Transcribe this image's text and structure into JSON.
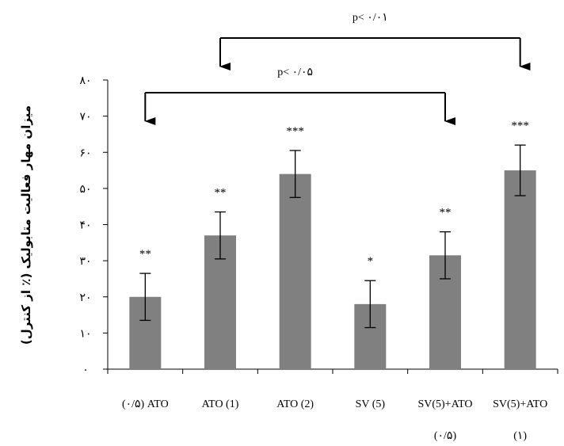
{
  "chart_data": {
    "type": "bar",
    "categories": [
      [
        "(۰/۵) ATO"
      ],
      [
        "ATO (1)"
      ],
      [
        "ATO (2)"
      ],
      [
        "SV (5)"
      ],
      [
        "SV(5)+ATO",
        "(۰/۵)"
      ],
      [
        "SV(5)+ATO",
        "(۱)"
      ]
    ],
    "values": [
      20,
      37,
      54,
      18,
      31.5,
      55
    ],
    "errors": [
      6.5,
      6.5,
      6.5,
      6.5,
      6.5,
      7
    ],
    "significance": [
      "**",
      "**",
      "***",
      "*",
      "**",
      "***"
    ],
    "ylabel": "میزان مهار فعالیت متابولیک (٪ از کنترل)",
    "ylim": [
      0,
      80
    ],
    "yticks": [
      0,
      10,
      20,
      30,
      40,
      50,
      60,
      70,
      80
    ],
    "ytick_labels": [
      "۰",
      "۱۰",
      "۲۰",
      "۳۰",
      "۴۰",
      "۵۰",
      "۶۰",
      "۷۰",
      "۸۰"
    ],
    "bar_color": "#808080",
    "comparisons": [
      {
        "from": 1,
        "to": 5,
        "label": "p< ۰/۰۱"
      },
      {
        "from": 0,
        "to": 4,
        "label": "p< ۰/۰۵"
      }
    ]
  }
}
